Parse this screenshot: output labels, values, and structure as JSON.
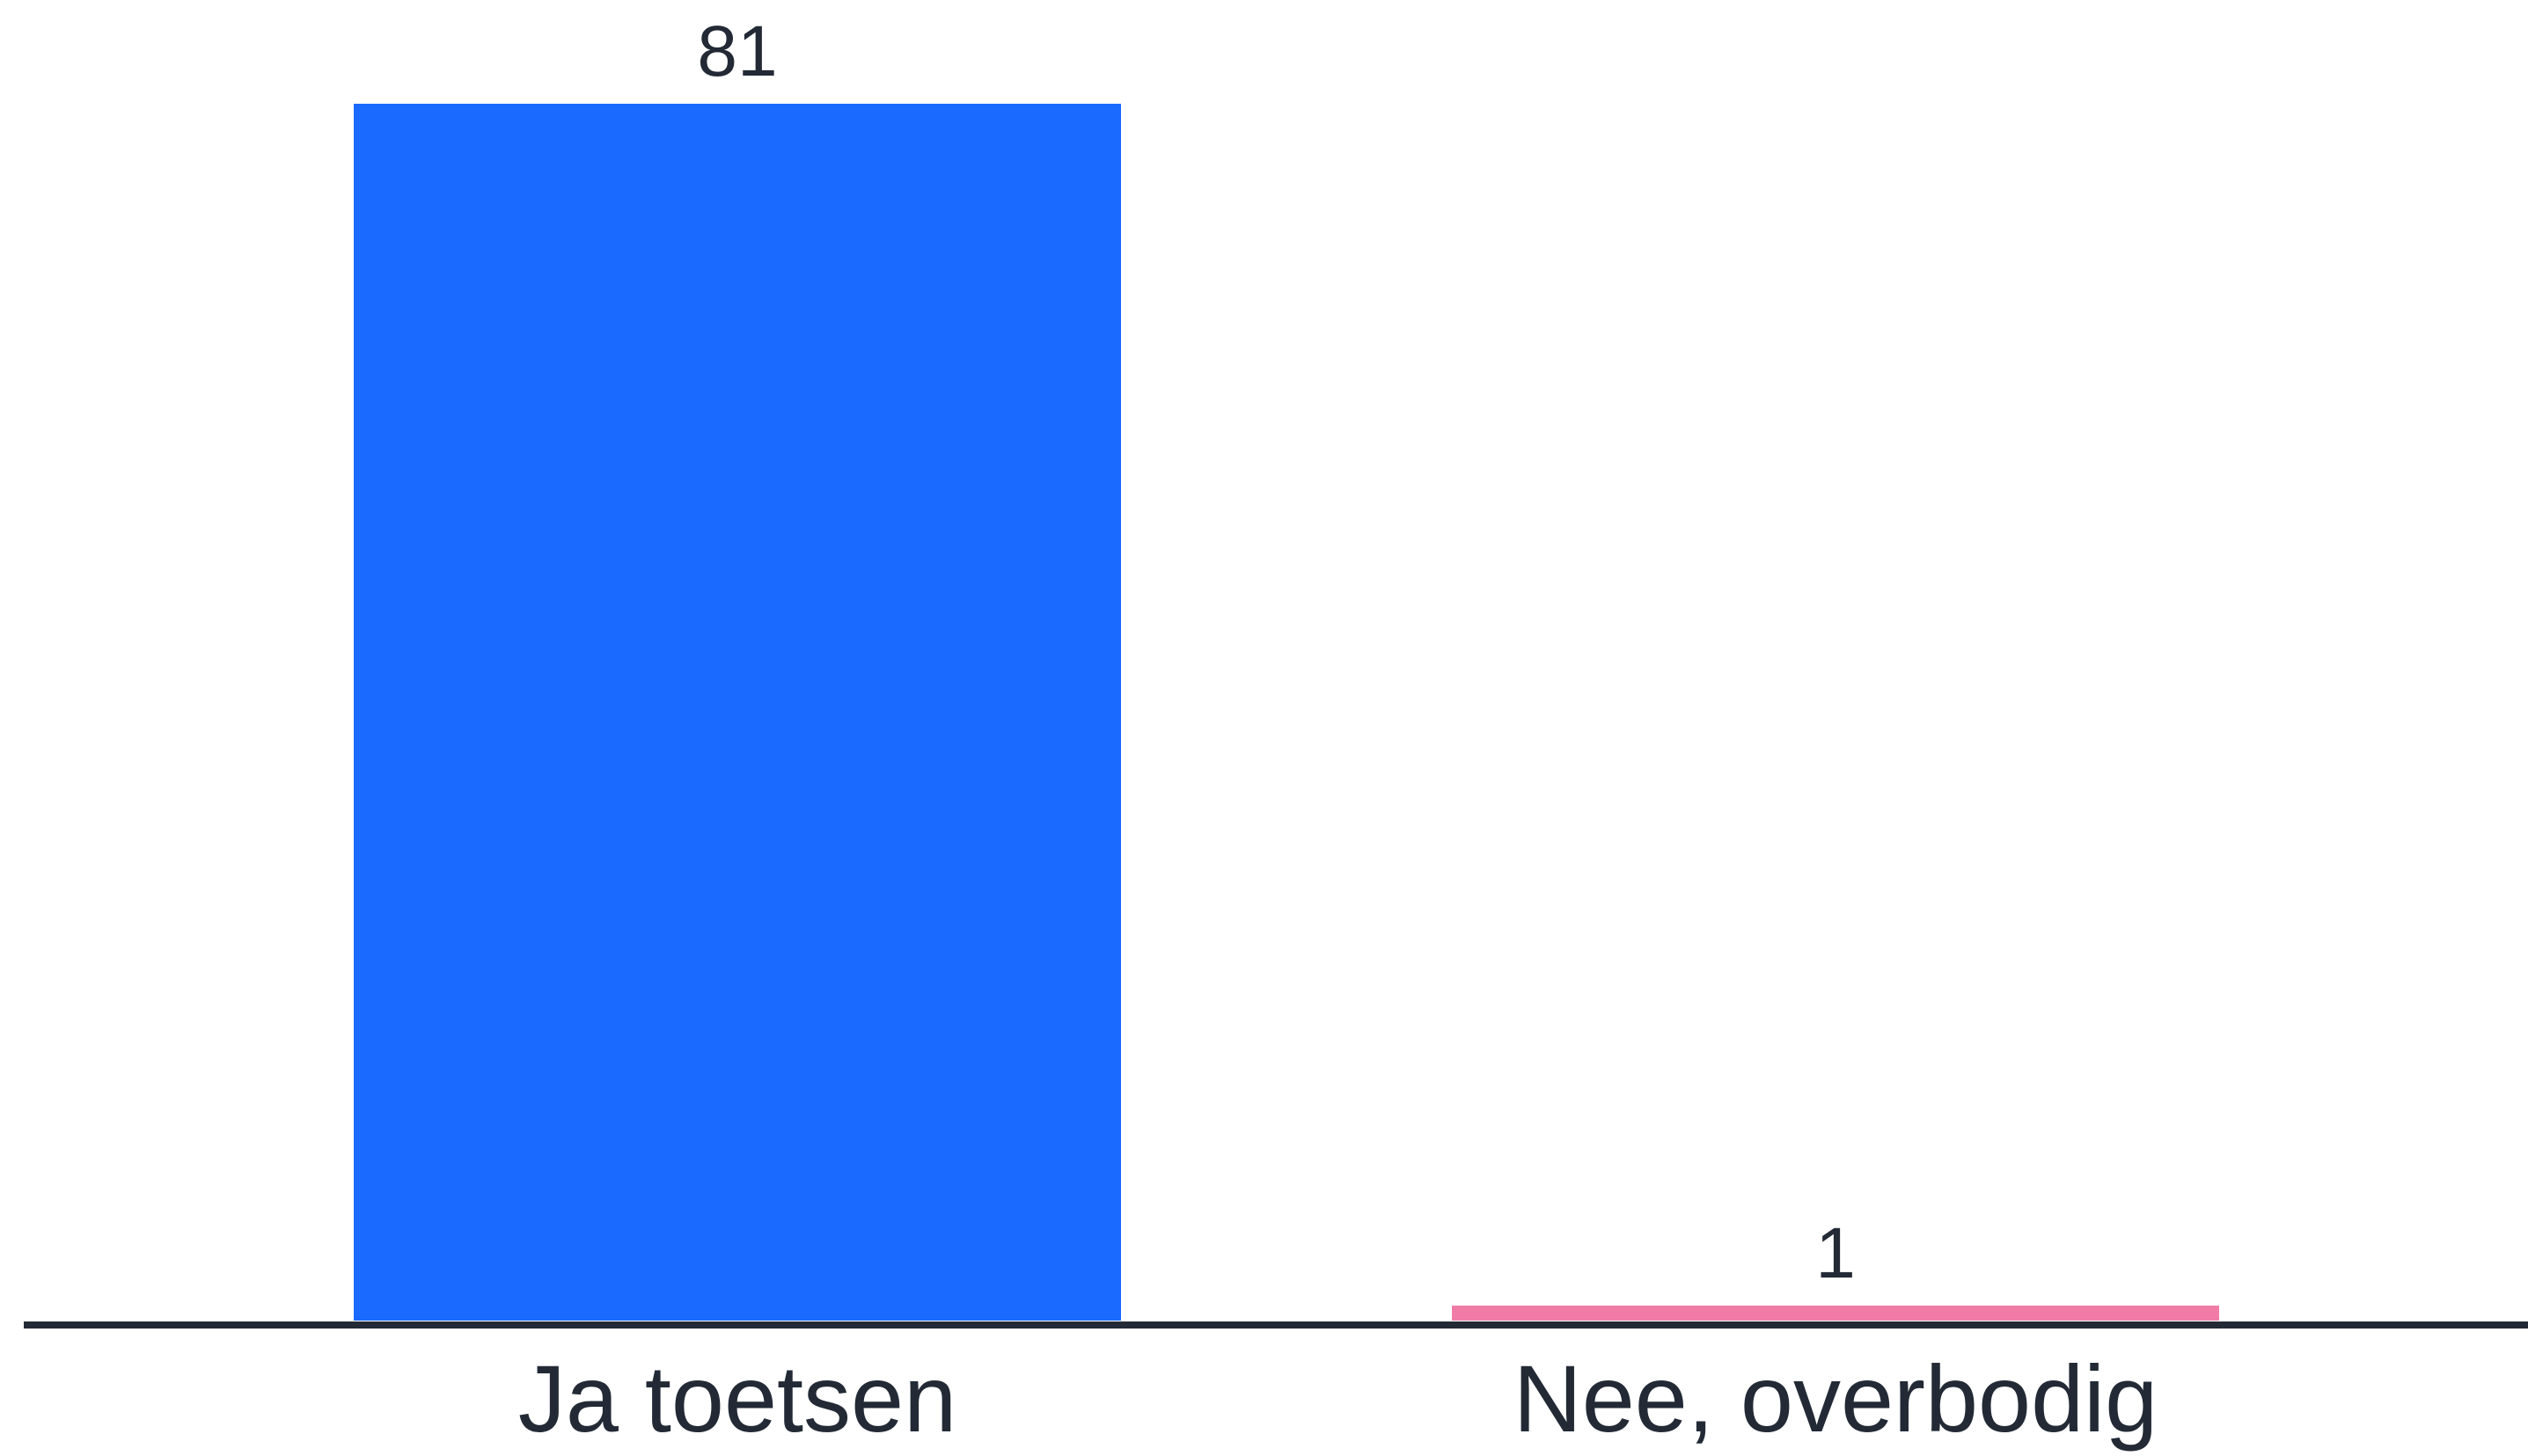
{
  "chart_data": {
    "type": "bar",
    "categories": [
      "Ja toetsen",
      "Nee, overbodig"
    ],
    "values": [
      81,
      1
    ],
    "data_labels": [
      "81",
      "1"
    ],
    "colors": [
      "#1a6aff",
      "#f07ca6"
    ],
    "axis_color": "#232a36",
    "text_color": "#232a36",
    "title": "",
    "xlabel": "",
    "ylabel": "",
    "ylim": [
      0,
      81
    ],
    "grid": false
  }
}
